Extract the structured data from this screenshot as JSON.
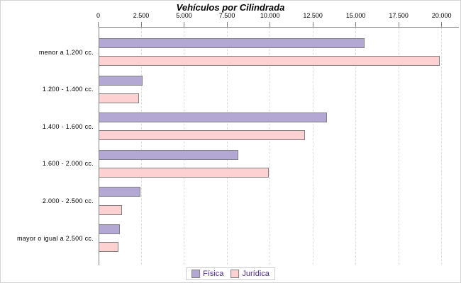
{
  "chart_data": {
    "type": "bar",
    "orientation": "horizontal",
    "title": "Vehículos por Cilindrada",
    "categories": [
      "menor a 1.200 cc.",
      "1.200 - 1.400 cc.",
      "1.400 - 1.600 cc.",
      "1.600 - 2.000 cc.",
      "2.000 - 2.500 cc.",
      "mayor o igual a 2.500 cc."
    ],
    "series": [
      {
        "name": "Física",
        "fill_color": "#b3a8d4",
        "border_color": "#808080",
        "values": [
          15500,
          2550,
          13300,
          8150,
          2450,
          1220
        ]
      },
      {
        "name": "Jurídica",
        "fill_color": "#fdd1d1",
        "border_color": "#808080",
        "values": [
          19850,
          2350,
          12000,
          9900,
          1380,
          1140
        ]
      }
    ],
    "x_axis": {
      "min": 0,
      "max": 20000,
      "tick_step": 2500,
      "tick_values": [
        0,
        2500,
        5000,
        7500,
        10000,
        12500,
        15000,
        17500,
        20000
      ],
      "tick_labels": [
        "0",
        "2.500",
        "5.000",
        "7.500",
        "10.000",
        "12.500",
        "15.000",
        "17.500",
        "20.000"
      ],
      "position": "top"
    },
    "grid": "vertical-dashed",
    "gridline_color": "#dcdcdc",
    "axis_color": "#808080",
    "legend": {
      "position": "bottom",
      "entries": [
        "Física",
        "Jurídica"
      ],
      "text_color": "#4a2d85",
      "border_color": "#cccccc"
    }
  }
}
